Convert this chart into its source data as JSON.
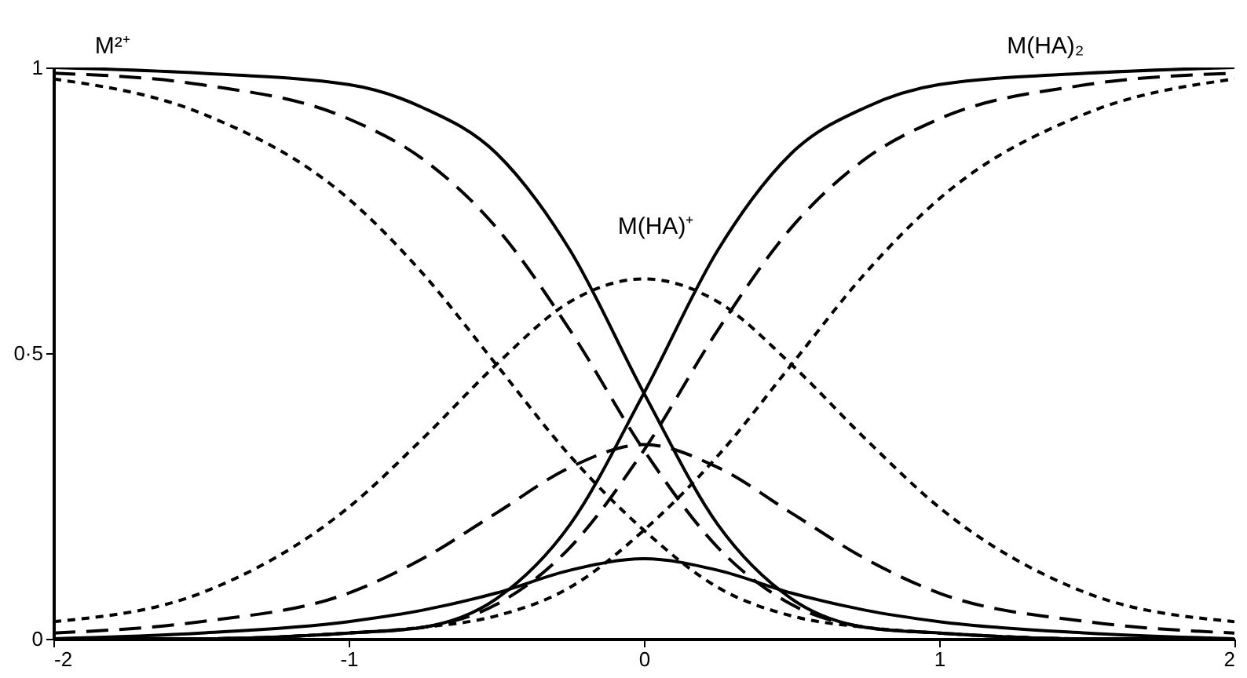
{
  "chart_data": {
    "type": "line",
    "x": [
      -2,
      -1.5,
      -1,
      -0.75,
      -0.5,
      -0.25,
      0,
      0.25,
      0.5,
      0.75,
      1,
      1.5,
      2
    ],
    "series": [
      {
        "color": "#000000",
        "line_style": "solid",
        "values": [
          1.0,
          0.99,
          0.97,
          0.93,
          0.85,
          0.68,
          0.43,
          0.2,
          0.07,
          0.02,
          0.01,
          0.0,
          0.0
        ]
      },
      {
        "color": "#000000",
        "line_style": "solid",
        "values": [
          0.0,
          0.01,
          0.03,
          0.05,
          0.08,
          0.12,
          0.14,
          0.12,
          0.08,
          0.05,
          0.03,
          0.01,
          0.0
        ]
      },
      {
        "color": "#000000",
        "line_style": "solid",
        "values": [
          0.0,
          0.0,
          0.01,
          0.02,
          0.07,
          0.2,
          0.43,
          0.68,
          0.85,
          0.93,
          0.97,
          0.99,
          1.0
        ]
      },
      {
        "color": "#000000",
        "line_style": "dashed",
        "values": [
          0.99,
          0.97,
          0.91,
          0.84,
          0.72,
          0.54,
          0.33,
          0.16,
          0.06,
          0.02,
          0.01,
          0.0,
          0.0
        ]
      },
      {
        "color": "#000000",
        "line_style": "dashed",
        "values": [
          0.01,
          0.03,
          0.08,
          0.14,
          0.22,
          0.3,
          0.34,
          0.3,
          0.22,
          0.14,
          0.08,
          0.03,
          0.01
        ]
      },
      {
        "color": "#000000",
        "line_style": "dashed",
        "values": [
          0.0,
          0.0,
          0.01,
          0.02,
          0.06,
          0.16,
          0.33,
          0.54,
          0.72,
          0.84,
          0.91,
          0.97,
          0.99
        ]
      },
      {
        "color": "#000000",
        "line_style": "dotted",
        "values": [
          0.98,
          0.92,
          0.77,
          0.64,
          0.48,
          0.32,
          0.19,
          0.09,
          0.04,
          0.02,
          0.01,
          0.0,
          0.0
        ]
      },
      {
        "color": "#000000",
        "line_style": "dotted",
        "values": [
          0.03,
          0.08,
          0.23,
          0.35,
          0.48,
          0.59,
          0.63,
          0.59,
          0.48,
          0.35,
          0.23,
          0.08,
          0.03
        ]
      },
      {
        "color": "#000000",
        "line_style": "dotted",
        "values": [
          0.0,
          0.0,
          0.01,
          0.02,
          0.04,
          0.09,
          0.19,
          0.32,
          0.48,
          0.64,
          0.77,
          0.92,
          0.98
        ]
      }
    ],
    "annotations": [
      "M²⁺",
      "M(HA)⁺",
      "M(HA)₂"
    ],
    "xlim": [
      -2,
      2
    ],
    "xticks": [
      -2,
      -1,
      0,
      1,
      2
    ],
    "ylim": [
      0,
      1
    ],
    "yticks": [
      0,
      {
        "value": 0.5,
        "label": "0·5"
      },
      1
    ],
    "grid": false
  }
}
